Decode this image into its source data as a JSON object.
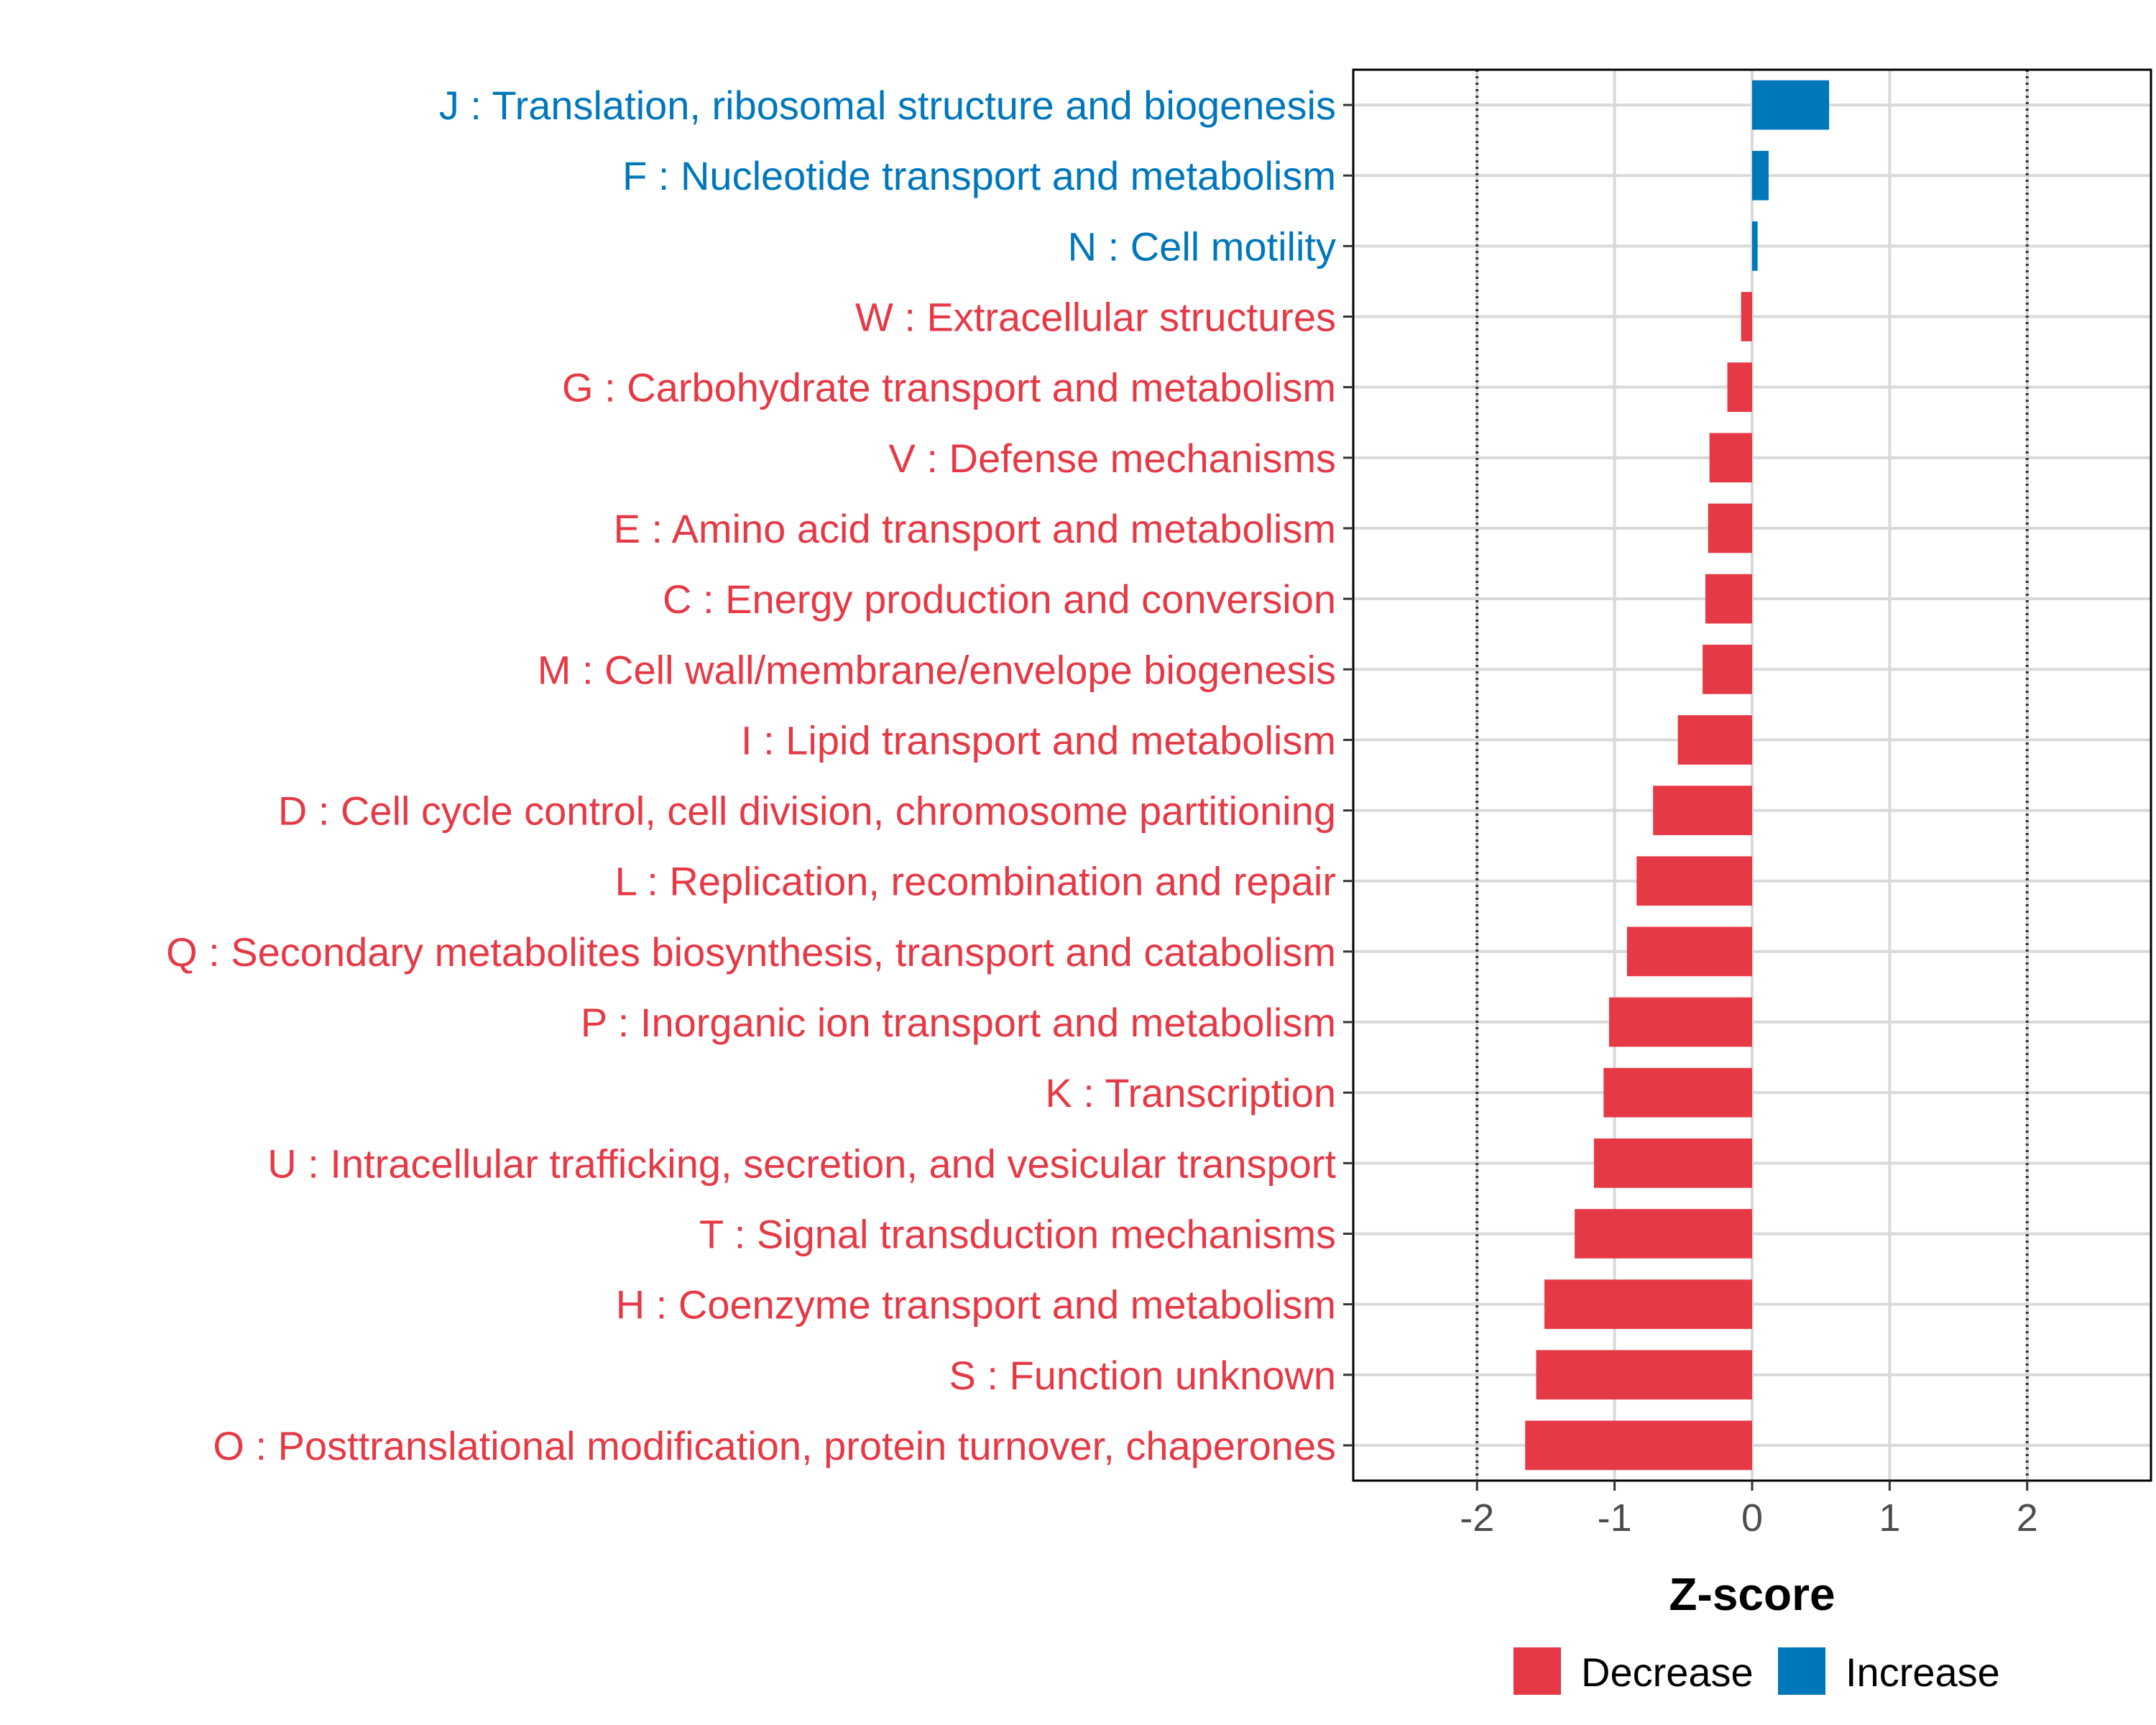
{
  "chart_data": {
    "type": "bar",
    "orientation": "horizontal",
    "xlabel": "Z-score",
    "ylabel": "",
    "xlim": [
      -2.9,
      2.9
    ],
    "xticks": [
      -2,
      -1,
      0,
      1,
      2
    ],
    "xtick_labels": [
      "-2",
      "-1",
      "0",
      "1",
      "2"
    ],
    "reference_lines": [
      -2,
      2
    ],
    "grid": true,
    "legend_position": "bottom",
    "legend": [
      {
        "name": "Decrease",
        "color": "#E63946"
      },
      {
        "name": "Increase",
        "color": "#0077BB"
      }
    ],
    "categories": [
      "J : Translation, ribosomal structure and biogenesis",
      "F : Nucleotide transport and metabolism",
      "N : Cell motility",
      "W : Extracellular structures",
      "G : Carbohydrate transport and metabolism",
      "V : Defense mechanisms",
      "E : Amino acid transport and metabolism",
      "C : Energy production and conversion",
      "M : Cell wall/membrane/envelope biogenesis",
      "I : Lipid transport and metabolism",
      "D : Cell cycle control, cell division, chromosome partitioning",
      "L : Replication, recombination and repair",
      "Q : Secondary metabolites biosynthesis, transport and catabolism",
      "P : Inorganic ion transport and metabolism",
      "K : Transcription",
      "U : Intracellular trafficking, secretion, and vesicular transport",
      "T : Signal transduction mechanisms",
      "H : Coenzyme transport and metabolism",
      "S : Function unknown",
      "O : Posttranslational modification, protein turnover, chaperones"
    ],
    "values": [
      0.56,
      0.12,
      0.04,
      -0.08,
      -0.18,
      -0.31,
      -0.32,
      -0.34,
      -0.36,
      -0.54,
      -0.72,
      -0.84,
      -0.91,
      -1.04,
      -1.08,
      -1.15,
      -1.29,
      -1.51,
      -1.57,
      -1.65
    ],
    "groups": [
      "Increase",
      "Increase",
      "Increase",
      "Decrease",
      "Decrease",
      "Decrease",
      "Decrease",
      "Decrease",
      "Decrease",
      "Decrease",
      "Decrease",
      "Decrease",
      "Decrease",
      "Decrease",
      "Decrease",
      "Decrease",
      "Decrease",
      "Decrease",
      "Decrease",
      "Decrease"
    ]
  }
}
